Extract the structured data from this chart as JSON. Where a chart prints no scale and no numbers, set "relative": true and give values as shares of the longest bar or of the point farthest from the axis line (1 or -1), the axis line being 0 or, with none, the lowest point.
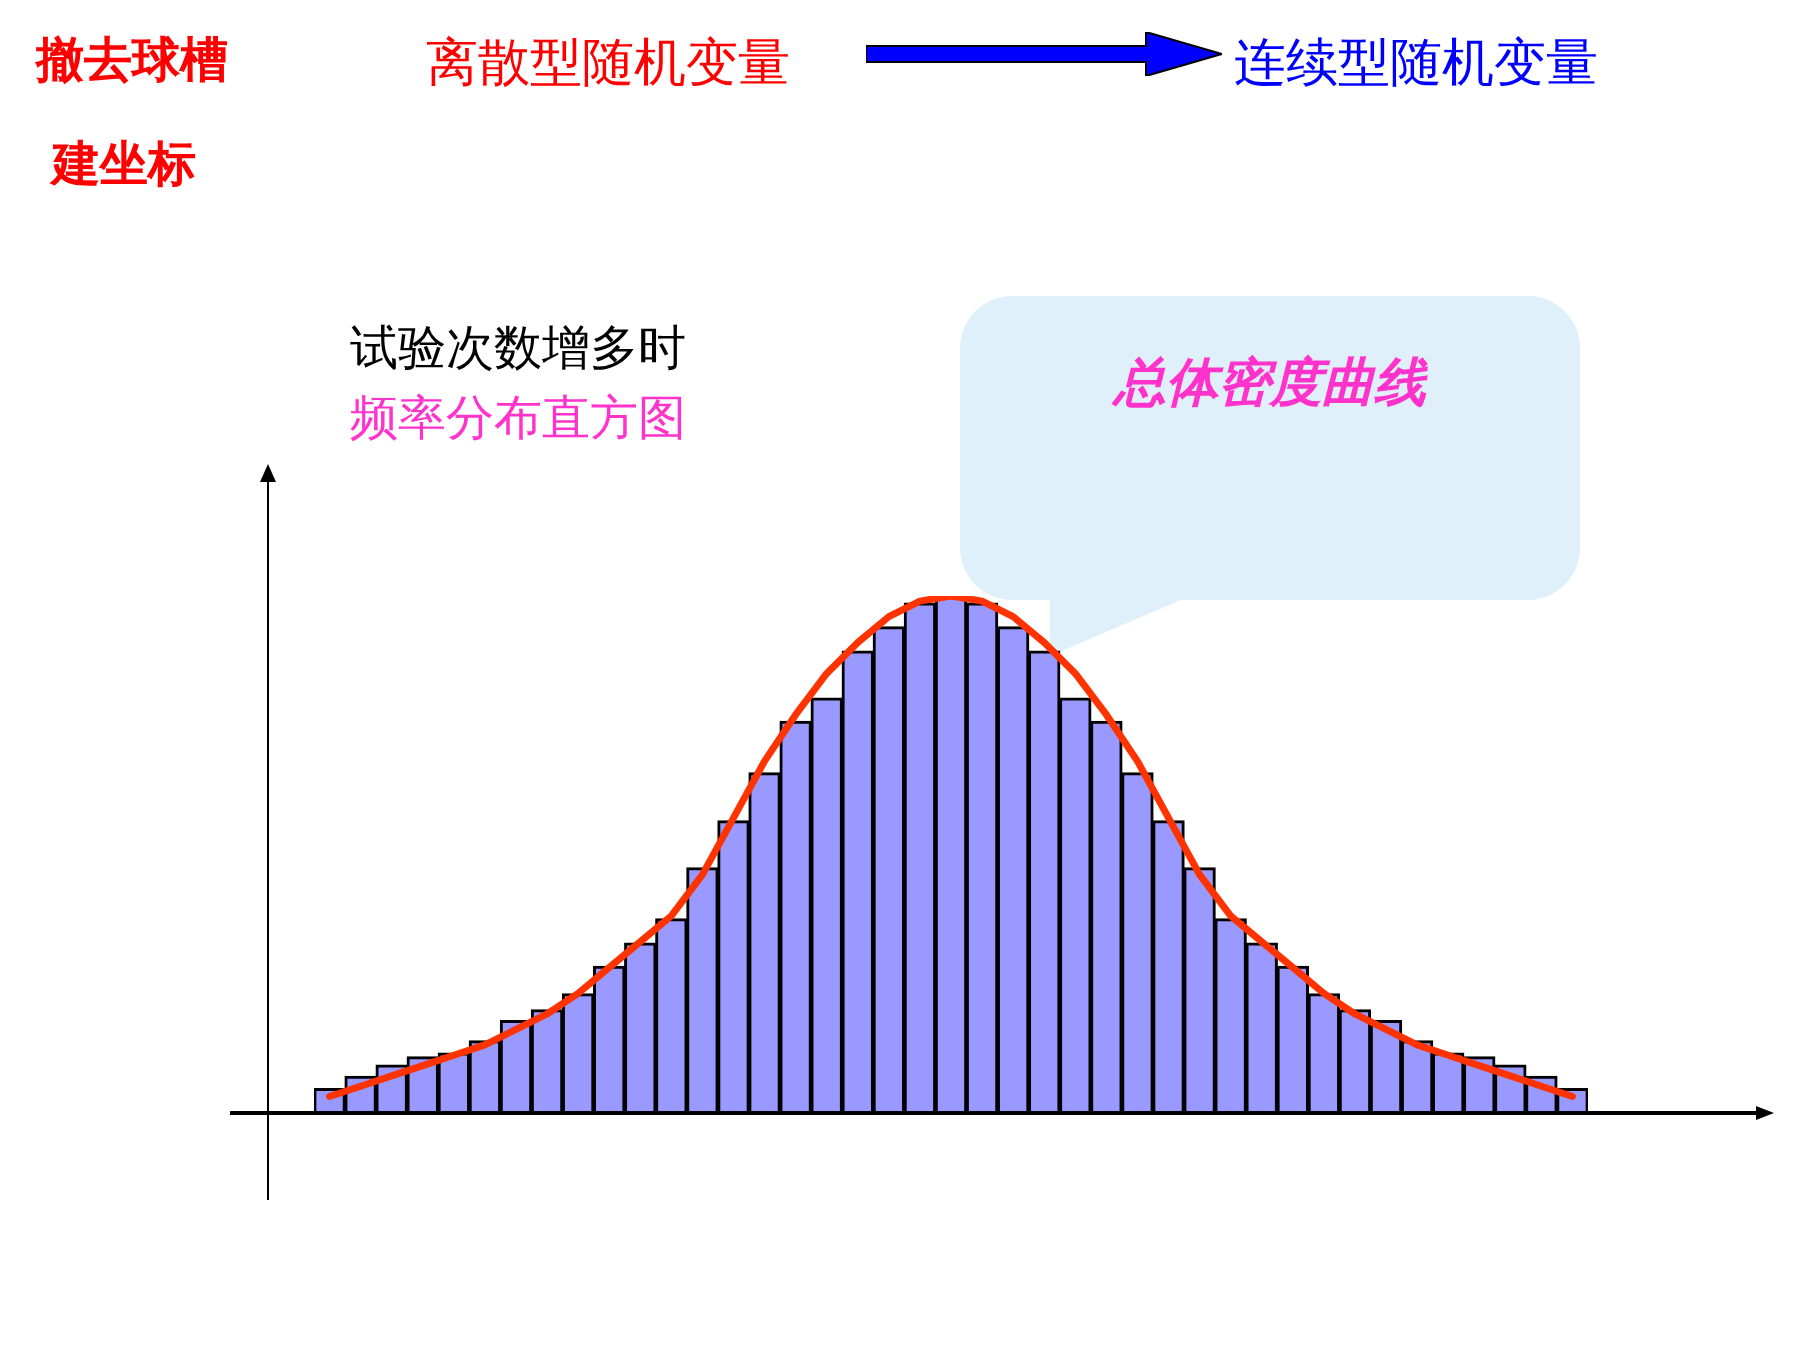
{
  "chart_data": [
    {
      "type": "bar",
      "relative": true,
      "legend": false,
      "categories": [
        null,
        null,
        null,
        null,
        null,
        null,
        null,
        null,
        null,
        null,
        null,
        null,
        null,
        null,
        null,
        null,
        null,
        null,
        null,
        null,
        null,
        null,
        null,
        null,
        null,
        null,
        null,
        null,
        null,
        null,
        null,
        null,
        null,
        null,
        null,
        null,
        null,
        null,
        null,
        null,
        null
      ],
      "series": [
        {
          "color": "#9999ff",
          "values": [
            0.045,
            0.069,
            0.091,
            0.107,
            0.114,
            0.138,
            0.177,
            0.198,
            0.229,
            0.282,
            0.327,
            0.374,
            0.473,
            0.564,
            0.657,
            0.757,
            0.802,
            0.893,
            0.94,
            0.986,
            1,
            0.986,
            0.94,
            0.893,
            0.802,
            0.757,
            0.657,
            0.564,
            0.473,
            0.374,
            0.327,
            0.282,
            0.229,
            0.198,
            0.177,
            0.138,
            0.114,
            0.107,
            0.091,
            0.069,
            0.045
          ]
        }
      ],
      "annotations": [
        "撤去球槽",
        "建坐标",
        "离散型随机变量",
        "连续型随机变量",
        "试验次数增多时",
        "频率分布直方图"
      ]
    },
    {
      "type": "line",
      "relative": true,
      "legend": false,
      "marker": "none",
      "categories": [
        null,
        null,
        null,
        null,
        null,
        null,
        null,
        null,
        null,
        null,
        null,
        null,
        null,
        null,
        null,
        null,
        null,
        null,
        null,
        null,
        null,
        null,
        null,
        null,
        null,
        null,
        null,
        null,
        null,
        null,
        null,
        null,
        null,
        null,
        null,
        null,
        null,
        null,
        null,
        null,
        null
      ],
      "series": [
        {
          "color": "#ff3300",
          "values": [
            0.03,
            0.05,
            0.07,
            0.09,
            0.11,
            0.13,
            0.16,
            0.19,
            0.23,
            0.28,
            0.33,
            0.38,
            0.46,
            0.57,
            0.68,
            0.77,
            0.85,
            0.91,
            0.96,
            0.99,
            1,
            0.99,
            0.96,
            0.91,
            0.85,
            0.77,
            0.68,
            0.57,
            0.46,
            0.38,
            0.33,
            0.28,
            0.23,
            0.19,
            0.16,
            0.13,
            0.11,
            0.09,
            0.07,
            0.05,
            0.03
          ]
        }
      ],
      "annotations": [
        "总体密度曲线"
      ]
    }
  ]
}
